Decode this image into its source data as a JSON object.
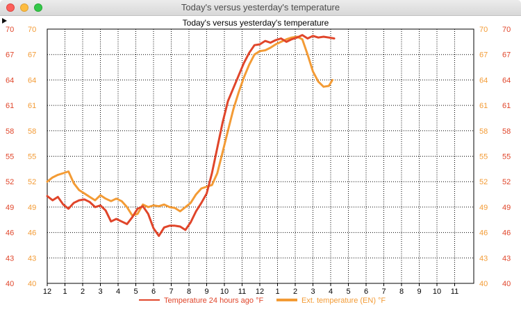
{
  "window": {
    "title": "Today's versus yesterday's temperature"
  },
  "toolbar": {
    "disclosure_icon": "triangle-right-icon"
  },
  "chart_data": {
    "type": "line",
    "title": "Today's versus yesterday's temperature",
    "xlabel": "",
    "ylabel": "",
    "x_tick_labels": [
      "12",
      "1",
      "2",
      "3",
      "4",
      "5",
      "6",
      "7",
      "8",
      "9",
      "10",
      "11",
      "12",
      "1",
      "2",
      "3",
      "4",
      "5",
      "6",
      "7",
      "8",
      "9",
      "10",
      "11"
    ],
    "x_range_hours": [
      0,
      24
    ],
    "y_ticks": [
      40,
      43,
      46,
      49,
      52,
      55,
      58,
      61,
      64,
      67,
      70
    ],
    "ylim": [
      40,
      70
    ],
    "grid": true,
    "legend_position": "bottom-center",
    "series": [
      {
        "name": "Temperature 24 hours ago °F",
        "color": "#e0452a",
        "x_hours": [
          0,
          0.3,
          0.6,
          0.9,
          1.2,
          1.5,
          1.8,
          2.1,
          2.4,
          2.7,
          3.0,
          3.3,
          3.6,
          3.9,
          4.2,
          4.5,
          4.8,
          5.1,
          5.4,
          5.7,
          6.0,
          6.3,
          6.6,
          6.9,
          7.2,
          7.5,
          7.8,
          8.1,
          8.4,
          8.7,
          9.0,
          9.3,
          9.6,
          9.9,
          10.2,
          10.5,
          10.8,
          11.1,
          11.4,
          11.7,
          12.0,
          12.3,
          12.6,
          12.9,
          13.2,
          13.5,
          13.8,
          14.1,
          14.4,
          14.7,
          15.0,
          15.3,
          15.6,
          15.9,
          16.2
        ],
        "values": [
          50.3,
          49.8,
          50.2,
          49.3,
          48.8,
          49.5,
          49.8,
          49.9,
          49.6,
          49.0,
          49.2,
          48.6,
          47.3,
          47.6,
          47.3,
          47.0,
          47.8,
          48.8,
          49.1,
          48.2,
          46.5,
          45.6,
          46.6,
          46.8,
          46.8,
          46.7,
          46.3,
          47.2,
          48.5,
          49.5,
          50.6,
          53.0,
          56.0,
          59.0,
          61.5,
          63.0,
          64.5,
          66.0,
          67.2,
          68.1,
          68.2,
          68.6,
          68.4,
          68.7,
          68.9,
          68.5,
          68.8,
          69.0,
          69.3,
          68.9,
          69.2,
          69.0,
          69.1,
          69.0,
          68.9
        ]
      },
      {
        "name": "Ext. temperature (EN) °F",
        "color": "#f39b35",
        "x_hours": [
          0,
          0.3,
          0.6,
          0.9,
          1.2,
          1.5,
          1.8,
          2.1,
          2.4,
          2.7,
          3.0,
          3.3,
          3.6,
          3.9,
          4.2,
          4.5,
          4.8,
          5.1,
          5.4,
          5.7,
          6.0,
          6.3,
          6.6,
          6.9,
          7.2,
          7.5,
          7.8,
          8.1,
          8.4,
          8.7,
          9.0,
          9.3,
          9.6,
          9.9,
          10.2,
          10.5,
          10.8,
          11.1,
          11.4,
          11.7,
          12.0,
          12.3,
          12.6,
          12.9,
          13.2,
          13.5,
          13.8,
          14.1,
          14.4,
          14.7,
          15.0,
          15.3,
          15.6,
          15.9,
          16.1
        ],
        "values": [
          52.0,
          52.5,
          52.8,
          53.0,
          53.2,
          51.8,
          51.0,
          50.6,
          50.2,
          49.8,
          50.4,
          50.0,
          49.7,
          50.0,
          49.7,
          49.0,
          48.0,
          48.2,
          49.3,
          49.0,
          49.2,
          49.1,
          49.3,
          49.0,
          48.9,
          48.5,
          49.0,
          49.5,
          50.5,
          51.2,
          51.4,
          51.6,
          53.0,
          55.5,
          58.0,
          60.5,
          62.5,
          64.3,
          65.8,
          67.0,
          67.4,
          67.5,
          67.8,
          68.2,
          68.5,
          68.8,
          69.0,
          69.1,
          68.8,
          67.0,
          65.0,
          63.8,
          63.2,
          63.3,
          64.0
        ]
      }
    ]
  }
}
